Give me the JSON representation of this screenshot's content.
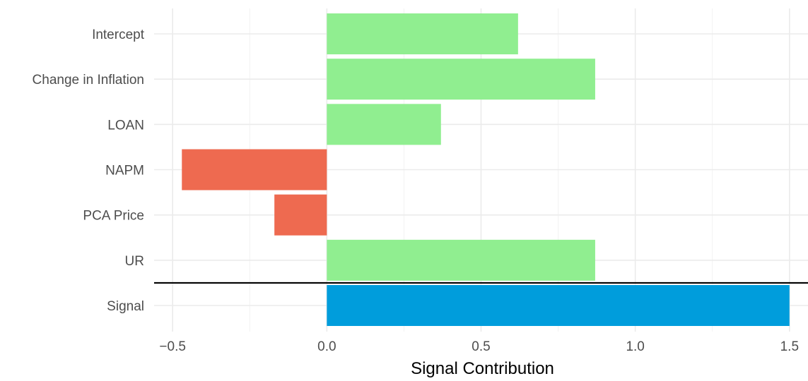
{
  "chart_data": {
    "type": "bar",
    "orientation": "horizontal",
    "categories": [
      "Intercept",
      "Change in Inflation",
      "LOAN",
      "NAPM",
      "PCA Price",
      "UR",
      "Signal"
    ],
    "values": [
      0.62,
      0.87,
      0.37,
      -0.47,
      -0.17,
      0.87,
      1.5
    ],
    "xlabel": "Signal Contribution",
    "ylabel": "",
    "xlim": [
      -0.56,
      1.56
    ],
    "x_ticks": [
      -0.5,
      0.0,
      0.5,
      1.0,
      1.5
    ],
    "x_tick_labels": [
      "−0.5",
      "0.0",
      "0.5",
      "1.0",
      "1.5"
    ],
    "grid": true,
    "separator_after_category": "UR"
  },
  "colors": {
    "positive": "#90ee90",
    "negative": "#ee6a50",
    "signal": "#009ddc",
    "grid_major": "#ebebeb",
    "grid_minor": "#f2f2f2",
    "separator": "#000000"
  }
}
